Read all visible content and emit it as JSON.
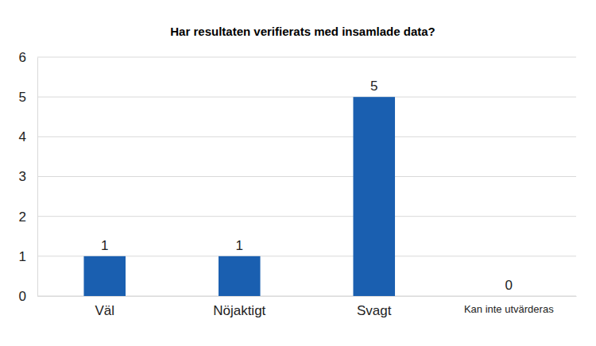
{
  "chart_data": {
    "type": "bar",
    "title": "Har resultaten verifierats med insamlade data?",
    "categories": [
      "Väl",
      "Nöjaktigt",
      "Svagt",
      "Kan inte utvärderas"
    ],
    "values": [
      1,
      1,
      5,
      0
    ],
    "color": "#1a5fb0",
    "ylim": [
      0,
      6
    ],
    "yticks": [
      0,
      1,
      2,
      3,
      4,
      5,
      6
    ],
    "grid": true,
    "data_labels": true
  }
}
